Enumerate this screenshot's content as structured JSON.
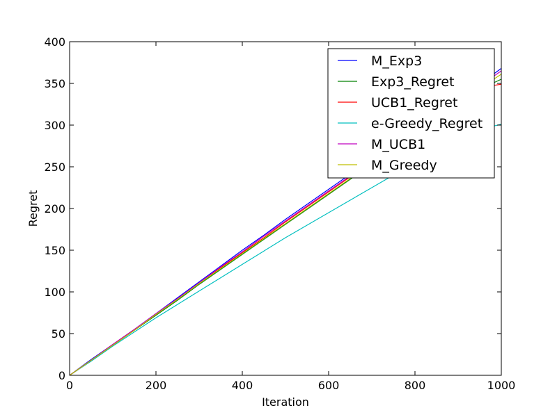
{
  "chart_data": {
    "type": "line",
    "xlabel": "Iteration",
    "ylabel": "Regret",
    "xlim": [
      0,
      1000
    ],
    "ylim": [
      0,
      400
    ],
    "x_ticks": [
      0,
      200,
      400,
      600,
      800,
      1000
    ],
    "y_ticks": [
      0,
      50,
      100,
      150,
      200,
      250,
      300,
      350,
      400
    ],
    "grid": false,
    "legend_position": "top-right",
    "x": [
      0,
      50,
      100,
      150,
      200,
      250,
      300,
      350,
      400,
      450,
      500,
      550,
      600,
      650,
      700,
      750,
      800,
      850,
      900,
      950,
      1000
    ],
    "series": [
      {
        "name": "M_Exp3",
        "color": "#0000ff",
        "values": [
          0,
          19,
          37,
          55,
          74,
          93,
          112,
          131,
          150,
          168,
          187,
          205,
          223,
          241,
          259,
          277,
          295,
          313,
          331,
          349,
          368
        ]
      },
      {
        "name": "Exp3_Regret",
        "color": "#008000",
        "values": [
          0,
          18,
          36,
          54,
          72,
          90,
          109,
          127,
          145,
          163,
          181,
          199,
          217,
          235,
          253,
          271,
          289,
          307,
          325,
          343,
          355
        ]
      },
      {
        "name": "UCB1_Regret",
        "color": "#ff0000",
        "values": [
          0,
          18,
          37,
          55,
          73,
          92,
          110,
          129,
          147,
          165,
          184,
          202,
          220,
          238,
          256,
          274,
          292,
          310,
          328,
          345,
          349
        ]
      },
      {
        "name": "e-Greedy_Regret",
        "color": "#00bfbf",
        "values": [
          0,
          17,
          35,
          52,
          69,
          85,
          101,
          117,
          133,
          149,
          165,
          180,
          195,
          210,
          225,
          240,
          255,
          270,
          285,
          295,
          301
        ]
      },
      {
        "name": "M_UCB1",
        "color": "#bf00bf",
        "values": [
          0,
          18,
          37,
          55,
          74,
          92,
          111,
          130,
          148,
          167,
          185,
          203,
          221,
          239,
          257,
          275,
          293,
          311,
          329,
          347,
          365
        ]
      },
      {
        "name": "M_Greedy",
        "color": "#bfbf00",
        "values": [
          0,
          18,
          36,
          54,
          73,
          91,
          110,
          128,
          146,
          164,
          182,
          200,
          218,
          236,
          254,
          272,
          290,
          308,
          326,
          344,
          361
        ]
      }
    ]
  }
}
